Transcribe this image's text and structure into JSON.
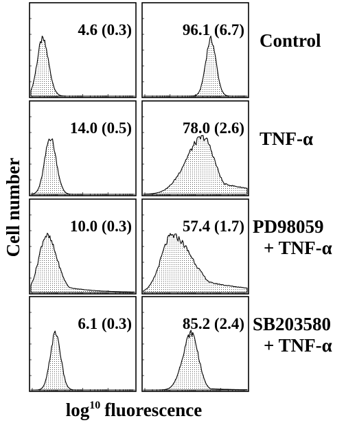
{
  "chart_data": {
    "type": "histogram-grid",
    "xlabel": {
      "base": "log",
      "superscript": "10",
      "rest": "fluorescence"
    },
    "ylabel": "Cell number",
    "x_scale": "log",
    "rows": [
      {
        "label_lines": [
          "Control"
        ],
        "panels": [
          {
            "value": "4.6 (0.3)",
            "mode_log": 0.45,
            "spread": 0.22,
            "skew": 0.1,
            "tail": 0.0
          },
          {
            "value": "96.1 (6.7)",
            "mode_log": 2.6,
            "spread": 0.2,
            "skew": 0.0,
            "tail": 0.0
          }
        ]
      },
      {
        "label_lines": [
          "TNF-α"
        ],
        "panels": [
          {
            "value": "14.0 (0.5)",
            "mode_log": 0.75,
            "spread": 0.22,
            "skew": 0.05,
            "tail": 0.0
          },
          {
            "value": "78.0 (2.6)",
            "mode_log": 2.3,
            "spread": 0.55,
            "skew": -0.4,
            "tail": 0.3
          }
        ]
      },
      {
        "label_lines": [
          "PD98059",
          "+ TNF-α"
        ],
        "panels": [
          {
            "value": "10.0 (0.3)",
            "mode_log": 0.6,
            "spread": 0.35,
            "skew": 0.3,
            "tail": 0.2
          },
          {
            "value": "57.4 (1.7)",
            "mode_log": 1.1,
            "spread": 0.6,
            "skew": 0.6,
            "tail": 0.4
          }
        ]
      },
      {
        "label_lines": [
          "SB203580",
          "+ TNF-α"
        ],
        "panels": [
          {
            "value": "6.1 (0.3)",
            "mode_log": 0.95,
            "spread": 0.2,
            "skew": 0.0,
            "tail": 0.0
          },
          {
            "value": "85.2 (2.4)",
            "mode_log": 1.85,
            "spread": 0.3,
            "skew": -0.2,
            "tail": 0.05
          }
        ]
      }
    ]
  }
}
